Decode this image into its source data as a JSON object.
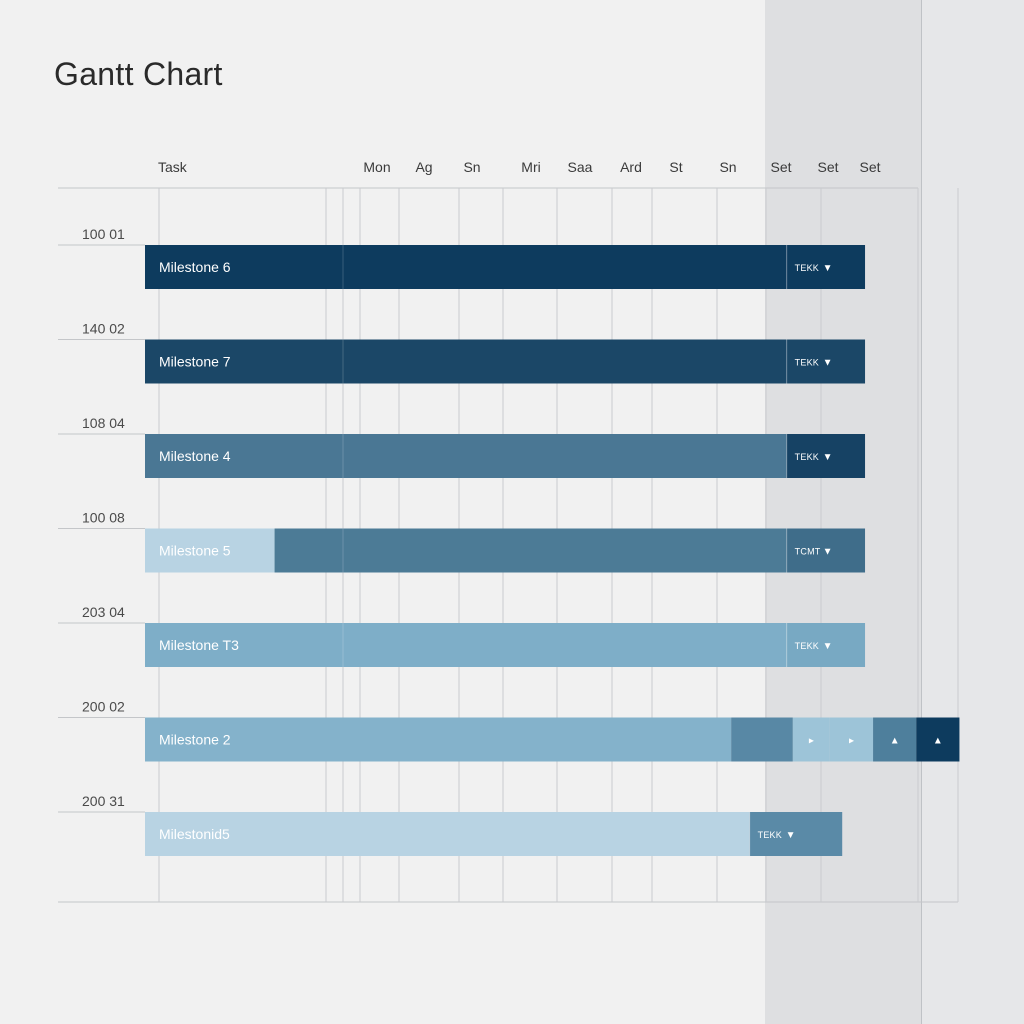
{
  "title": "Gantt Chart",
  "chart_data": {
    "type": "gantt",
    "task_header": "Task",
    "columns": [
      "Mon",
      "Ag",
      "Sn",
      "Mri",
      "Saa",
      "Ard",
      "St",
      "Sn",
      "Set",
      "Set",
      "Set"
    ],
    "rows": [
      {
        "code": "100 01",
        "segments": [
          {
            "label": "Milestone 6",
            "start": 0,
            "end": 10.4,
            "color": "#0d3b5e"
          }
        ],
        "tag": {
          "label": "TEKK",
          "glyph": "▼",
          "color": "#0d3b5e"
        }
      },
      {
        "code": "140 02",
        "segments": [
          {
            "label": "Milestone 7",
            "start": 0,
            "end": 10.4,
            "color": "#1b4767"
          }
        ],
        "tag": {
          "label": "TEKK",
          "glyph": "▼",
          "color": "#1b4767"
        }
      },
      {
        "code": "108 04",
        "segments": [
          {
            "label": "Milestone 4",
            "start": 0,
            "end": 10.4,
            "color": "#4a7794"
          }
        ],
        "tag": {
          "label": "TEKK",
          "glyph": "▼",
          "color": "#164264"
        }
      },
      {
        "code": "100 08",
        "segments": [
          {
            "label": "Milestone 5",
            "start": 0,
            "end": 2.1,
            "color": "#b8d3e3"
          },
          {
            "label": "",
            "start": 2.1,
            "end": 10.4,
            "color": "#4c7b96"
          }
        ],
        "tag": {
          "label": "TCMT",
          "glyph": "▼",
          "color": "#3f6d8a"
        }
      },
      {
        "code": "203 04",
        "segments": [
          {
            "label": "Milestone T3",
            "start": 0,
            "end": 10.4,
            "color": "#7eaec8"
          }
        ],
        "tag": {
          "label": "TEKK",
          "glyph": "▼",
          "color": "#78a9c3"
        }
      },
      {
        "code": "200 02",
        "segments": [
          {
            "label": "Milestone 2",
            "start": 0,
            "end": 9.5,
            "color": "#84b2cb"
          },
          {
            "label": "",
            "start": 9.5,
            "end": 10.5,
            "color": "#5888a5"
          }
        ],
        "markers": [
          {
            "glyph": "▸",
            "start": 10.5,
            "end": 11.1,
            "color": "#9dc4d8"
          },
          {
            "glyph": "▸",
            "start": 11.1,
            "end": 11.8,
            "color": "#9dc4d8"
          },
          {
            "glyph": "▲",
            "start": 11.8,
            "end": 12.5,
            "color": "#4e7f9c"
          },
          {
            "glyph": "▲",
            "start": 12.5,
            "end": 13.2,
            "color": "#0d3b5e"
          }
        ]
      },
      {
        "code": "200 31",
        "segments": [
          {
            "label": "Milestonid5",
            "start": 0,
            "end": 9.8,
            "color": "#b8d3e3"
          }
        ],
        "tag": {
          "label": "TEKK",
          "glyph": "▼",
          "color": "#5a8aa7",
          "start": 9.8,
          "end": 11.3
        }
      }
    ]
  }
}
